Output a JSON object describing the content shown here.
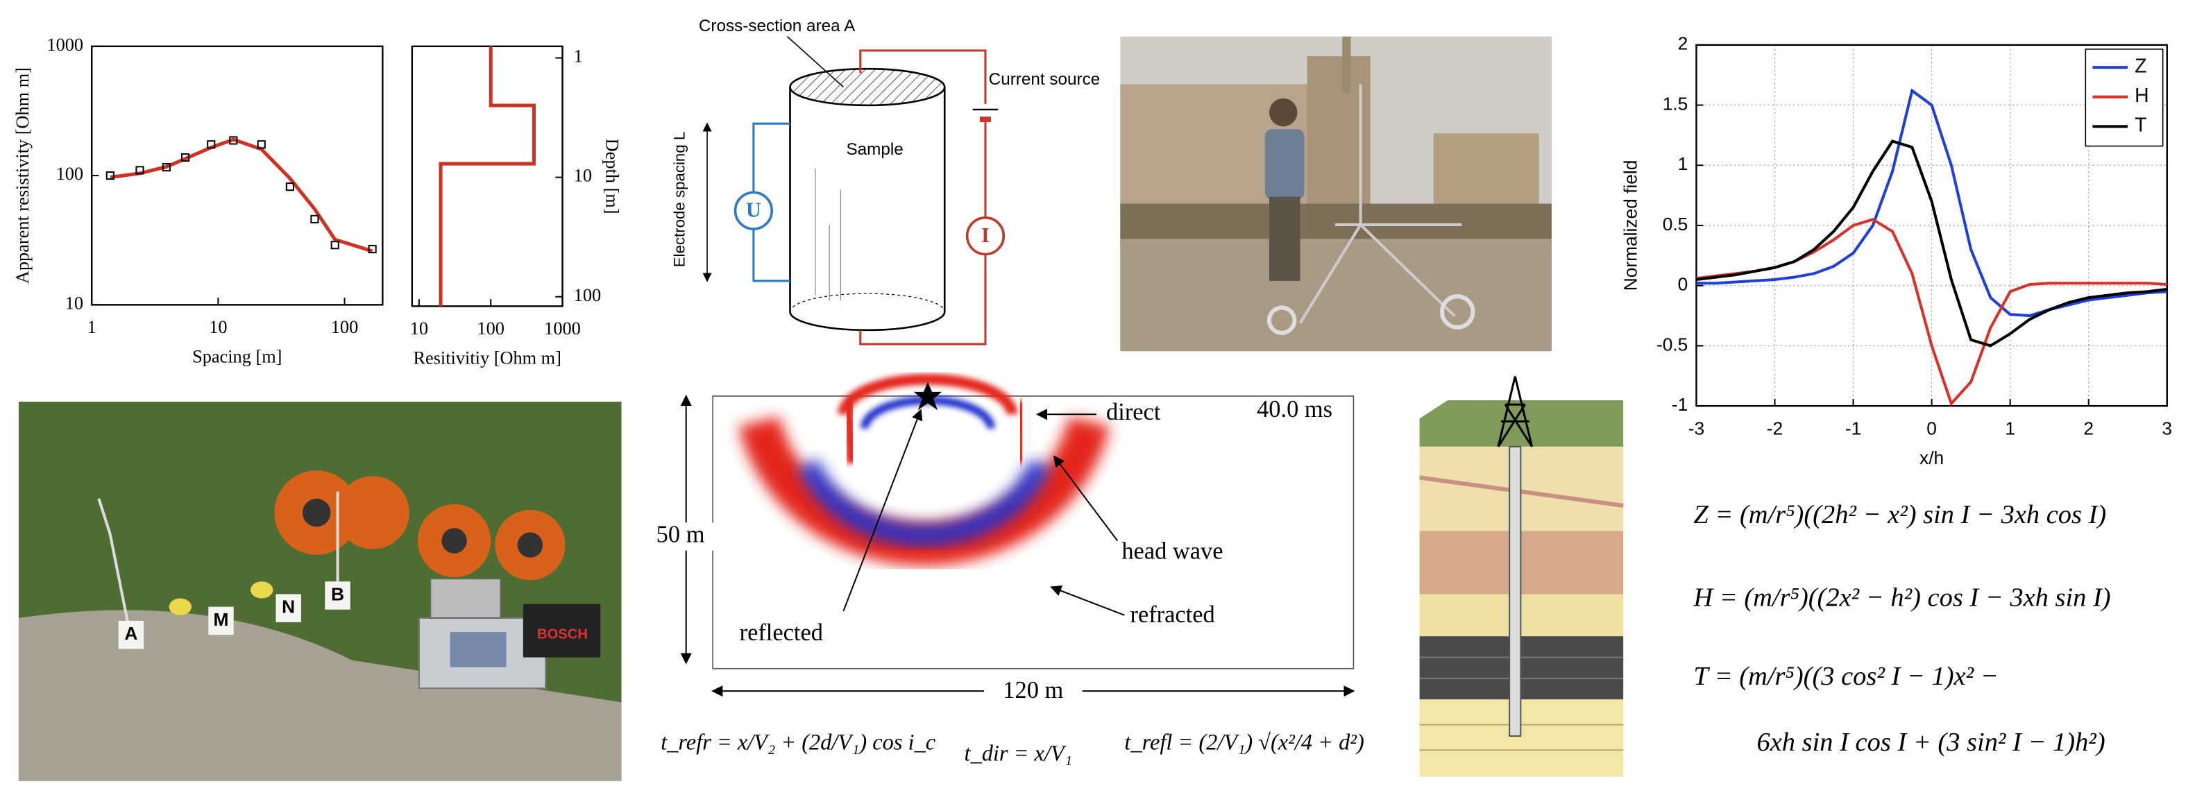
{
  "chart_data": [
    {
      "type": "line",
      "log_x": true,
      "log_y": true,
      "xlabel": "Spacing [m]",
      "ylabel": "Apparent resistivity [Ohm m]",
      "xlim": [
        1,
        200
      ],
      "ylim": [
        10,
        1000
      ],
      "xticks": [
        1,
        10,
        100
      ],
      "yticks": [
        10,
        100,
        1000
      ],
      "series": [
        {
          "style": "line",
          "color": "#cc3322",
          "x": [
            1.4,
            2.4,
            3.9,
            5.5,
            8.8,
            13.2,
            22,
            37,
            58,
            84,
            166
          ],
          "values": [
            97,
            104,
            117,
            135,
            165,
            190,
            160,
            95,
            55,
            32,
            26
          ]
        },
        {
          "style": "markers",
          "color": "#000000",
          "x": [
            1.4,
            2.4,
            3.9,
            5.5,
            8.8,
            13.2,
            22,
            37,
            58,
            84,
            166
          ],
          "values": [
            100,
            110,
            116,
            138,
            174,
            187,
            174,
            82,
            46,
            29,
            27
          ]
        }
      ]
    },
    {
      "type": "line",
      "log_x": true,
      "log_y": true,
      "y_inverted": true,
      "y_axis_side": "right",
      "xlabel": "Resitivitiy [Ohm m]",
      "ylabel": "Depth [m]",
      "xlim": [
        8,
        1000
      ],
      "ylim": [
        0.8,
        120
      ],
      "xticks": [
        10,
        100,
        1000
      ],
      "yticks": [
        1,
        10,
        100
      ],
      "series": [
        {
          "style": "line",
          "color": "#cc3322",
          "x": [
            100,
            100,
            400,
            400,
            20,
            20
          ],
          "values": [
            0.8,
            2.5,
            2.5,
            7.7,
            7.7,
            120
          ]
        }
      ]
    },
    {
      "type": "line",
      "grid": true,
      "legend": "upper right",
      "xlabel": "x/h",
      "ylabel": "Normalized field",
      "xlim": [
        -3,
        3
      ],
      "ylim": [
        -1,
        2
      ],
      "xticks": [
        -3,
        -2,
        -1,
        0,
        1,
        2,
        3
      ],
      "yticks": [
        -1,
        -0.5,
        0,
        0.5,
        1,
        1.5,
        2
      ],
      "x": [
        -3,
        -2.75,
        -2.5,
        -2.25,
        -2,
        -1.75,
        -1.5,
        -1.25,
        -1,
        -0.75,
        -0.5,
        -0.25,
        0,
        0.25,
        0.5,
        0.75,
        1,
        1.25,
        1.5,
        1.75,
        2,
        2.25,
        2.5,
        2.75,
        3
      ],
      "series": [
        {
          "name": "Z",
          "color": "#1f3fd6",
          "values": [
            0.02,
            0.02,
            0.03,
            0.04,
            0.05,
            0.07,
            0.1,
            0.16,
            0.27,
            0.5,
            0.95,
            1.62,
            1.5,
            1.0,
            0.3,
            -0.1,
            -0.24,
            -0.25,
            -0.2,
            -0.16,
            -0.12,
            -0.1,
            -0.08,
            -0.06,
            -0.05
          ]
        },
        {
          "name": "H",
          "color": "#d8312a",
          "values": [
            0.06,
            0.08,
            0.1,
            0.12,
            0.15,
            0.2,
            0.28,
            0.38,
            0.5,
            0.55,
            0.45,
            0.1,
            -0.5,
            -0.98,
            -0.8,
            -0.35,
            -0.05,
            0.01,
            0.02,
            0.02,
            0.02,
            0.02,
            0.02,
            0.02,
            0.01
          ]
        },
        {
          "name": "T",
          "color": "#000000",
          "values": [
            0.05,
            0.07,
            0.09,
            0.12,
            0.15,
            0.2,
            0.3,
            0.45,
            0.65,
            0.95,
            1.2,
            1.15,
            0.7,
            0.05,
            -0.45,
            -0.5,
            -0.4,
            -0.28,
            -0.2,
            -0.14,
            -0.1,
            -0.08,
            -0.06,
            -0.05,
            -0.03
          ]
        }
      ]
    }
  ],
  "resistivity_cell": {
    "area_label": "Cross-section area A",
    "source_label": "Current source",
    "sample_label": "Sample",
    "spacing_label": "Electrode spacing L",
    "voltmeter": "U",
    "ammeter": "I"
  },
  "survey_photo": {
    "electrode_labels": [
      "A",
      "M",
      "N",
      "B"
    ],
    "battery_brand": "BOSCH"
  },
  "seismic": {
    "time": "40.0 ms",
    "height": "50 m",
    "width": "120 m",
    "labels": {
      "direct": "direct",
      "head": "head wave",
      "reflected": "reflected",
      "refracted": "refracted"
    },
    "equations": {
      "refracted": "t_refr = x/V₂ + (2d/V₁) cos i_c",
      "direct": "t_dir = x/V₁",
      "reflected": "t_refl = (2/V₁) √(x²/4 + d²)"
    }
  },
  "magnetic_equations": [
    "Z = (m/r⁵)((2h² − x²) sin I − 3xh cos I)",
    "H = (m/r⁵)((2x² − h²) cos I − 3xh sin I)",
    "T = (m/r⁵)((3 cos² I − 1)x² −",
    "6xh sin I cos I + (3 sin² I − 1)h²)"
  ]
}
